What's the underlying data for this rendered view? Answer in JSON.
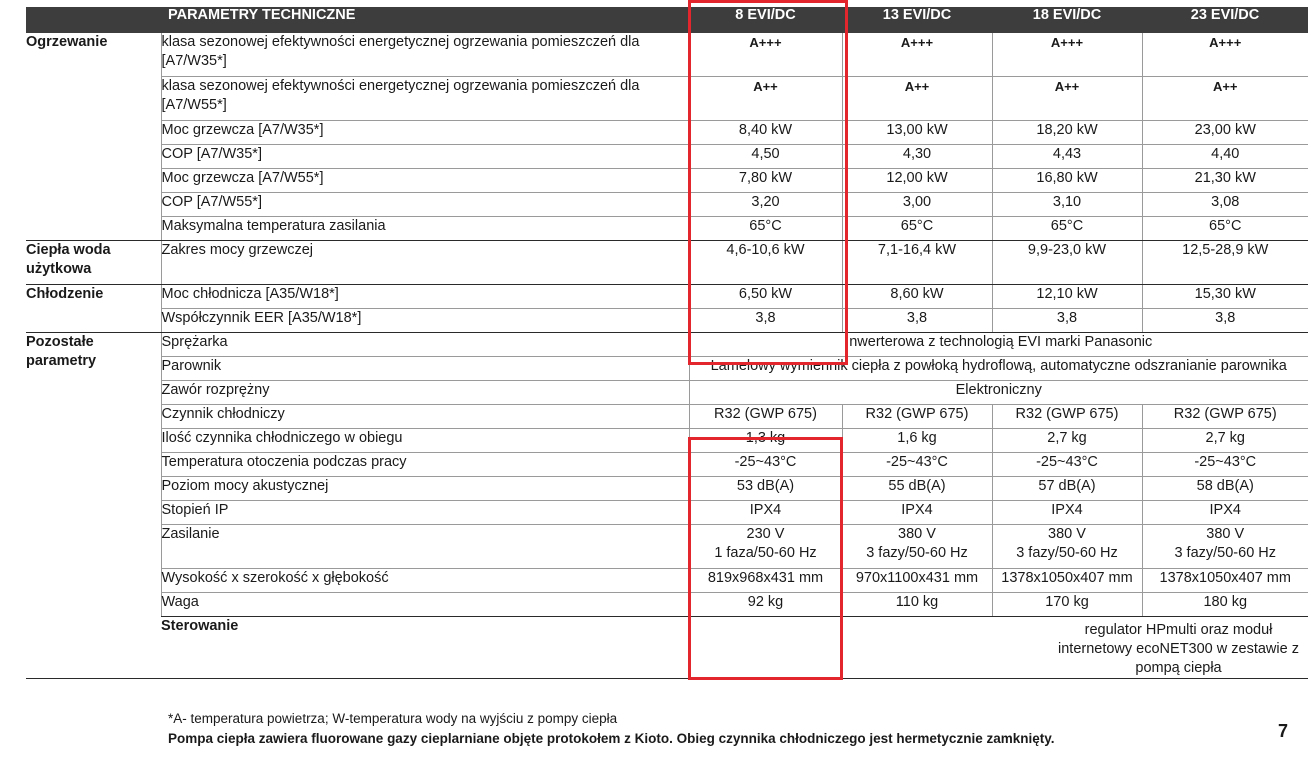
{
  "header": {
    "title": "PARAMETRY TECHNICZNE",
    "models": [
      "8 EVI/DC",
      "13 EVI/DC",
      "18 EVI/DC",
      "23 EVI/DC"
    ]
  },
  "sections": {
    "heating": {
      "label": "Ogrzewanie",
      "rows": [
        {
          "param": "klasa sezonowej efektywności energetycznej ogrzewania pomieszczeń dla [A7/W35*]",
          "values": [
            "A+++",
            "A+++",
            "A+++",
            "A+++"
          ]
        },
        {
          "param": "klasa sezonowej efektywności energetycznej ogrzewania pomieszczeń dla [A7/W55*]",
          "values": [
            "A++",
            "A++",
            "A++",
            "A++"
          ]
        },
        {
          "param": "Moc grzewcza [A7/W35*]",
          "values": [
            "8,40 kW",
            "13,00 kW",
            "18,20 kW",
            "23,00 kW"
          ]
        },
        {
          "param": "COP [A7/W35*]",
          "values": [
            "4,50",
            "4,30",
            "4,43",
            "4,40"
          ]
        },
        {
          "param": "Moc grzewcza [A7/W55*]",
          "values": [
            "7,80 kW",
            "12,00 kW",
            "16,80 kW",
            "21,30 kW"
          ]
        },
        {
          "param": "COP [A7/W55*]",
          "values": [
            "3,20",
            "3,00",
            "3,10",
            "3,08"
          ]
        },
        {
          "param": "Maksymalna temperatura zasilania",
          "values": [
            "65°C",
            "65°C",
            "65°C",
            "65°C"
          ]
        }
      ]
    },
    "dhw": {
      "label": "Ciepła woda użytkowa",
      "rows": [
        {
          "param": "Zakres mocy grzewczej",
          "values": [
            "4,6-10,6 kW",
            "7,1-16,4 kW",
            "9,9-23,0 kW",
            "12,5-28,9 kW"
          ]
        }
      ]
    },
    "cooling": {
      "label": "Chłodzenie",
      "rows": [
        {
          "param": "Moc chłodnicza [A35/W18*]",
          "values": [
            "6,50 kW",
            "8,60 kW",
            "12,10 kW",
            "15,30 kW"
          ]
        },
        {
          "param": "Współczynnik EER [A35/W18*]",
          "values": [
            "3,8",
            "3,8",
            "3,8",
            "3,8"
          ]
        }
      ]
    },
    "other": {
      "label": "Pozostałe parametry",
      "compressor": {
        "param": "Sprężarka",
        "value": "Inwerterowa z technologią EVI marki Panasonic"
      },
      "evaporator": {
        "param": "Parownik",
        "value": "Lamelowy wymiennik ciepła z powłoką hydroflową, automatyczne odszranianie parownika"
      },
      "valve": {
        "param": "Zawór rozprężny",
        "value": "Elektroniczny"
      },
      "rows": [
        {
          "param": "Czynnik chłodniczy",
          "values": [
            "R32 (GWP 675)",
            "R32 (GWP 675)",
            "R32 (GWP 675)",
            "R32 (GWP 675)"
          ]
        },
        {
          "param": "Ilość czynnika chłodniczego w obiegu",
          "values": [
            "1,3 kg",
            "1,6 kg",
            "2,7 kg",
            "2,7 kg"
          ]
        },
        {
          "param": "Temperatura otoczenia podczas pracy",
          "values": [
            "-25~43°C",
            "-25~43°C",
            "-25~43°C",
            "-25~43°C"
          ]
        },
        {
          "param": "Poziom mocy akustycznej",
          "values": [
            "53 dB(A)",
            "55 dB(A)",
            "57 dB(A)",
            "58 dB(A)"
          ]
        },
        {
          "param": "Stopień IP",
          "values": [
            "IPX4",
            "IPX4",
            "IPX4",
            "IPX4"
          ]
        }
      ],
      "power": {
        "param": "Zasilanie",
        "values": [
          {
            "line1": "230 V",
            "line2": "1 faza/50-60 Hz"
          },
          {
            "line1": "380 V",
            "line2": "3 fazy/50-60 Hz"
          },
          {
            "line1": "380 V",
            "line2": "3 fazy/50-60 Hz"
          },
          {
            "line1": "380 V",
            "line2": "3 fazy/50-60 Hz"
          }
        ]
      },
      "dims": {
        "param": "Wysokość x szerokość x głębokość",
        "values": [
          "819x968x431 mm",
          "970x1100x431 mm",
          "1378x1050x407 mm",
          "1378x1050x407 mm"
        ]
      },
      "weight": {
        "param": "Waga",
        "values": [
          "92 kg",
          "110 kg",
          "170 kg",
          "180 kg"
        ]
      }
    },
    "control": {
      "label": "Sterowanie",
      "value": "regulator HPmulti oraz moduł internetowy ecoNET300 w zestawie z pompą ciepła"
    }
  },
  "footnotes": {
    "line1": "*A- temperatura powietrza; W-temperatura wody na wyjściu z pompy ciepła",
    "line2": "Pompa ciepła zawiera fluorowane gazy cieplarniane objęte protokołem z Kioto. Obieg czynnika chłodniczego jest hermetycznie zamknięty."
  },
  "page_number": "7",
  "colors": {
    "header_bg": "#3d3d3d",
    "highlight": "#e3262e"
  }
}
